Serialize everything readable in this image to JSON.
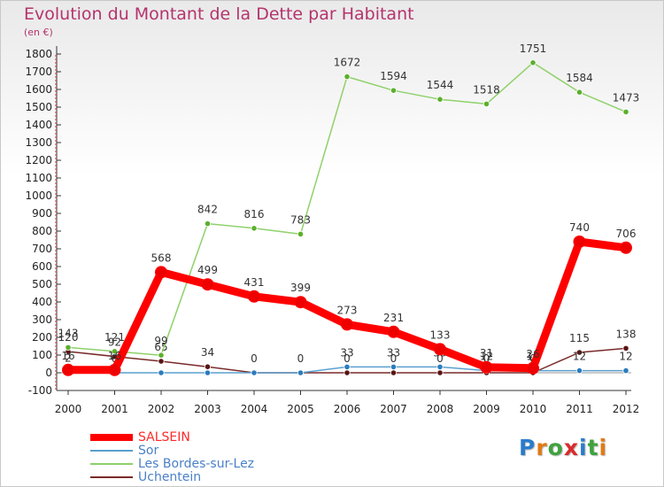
{
  "title": "Evolution du Montant de la Dette par Habitant",
  "subtitle": "(en €)",
  "brand": {
    "letters": [
      {
        "char": "P",
        "color": "#2a7ccc"
      },
      {
        "char": "r",
        "color": "#e07a16"
      },
      {
        "char": "o",
        "color": "#3fa23f"
      },
      {
        "char": "x",
        "color": "#d92b2b"
      },
      {
        "char": "i",
        "color": "#2a7ccc"
      },
      {
        "char": "t",
        "color": "#3fa23f"
      },
      {
        "char": "i",
        "color": "#e07a16"
      }
    ]
  },
  "chart_data": {
    "type": "line",
    "title": "Evolution du Montant de la Dette par Habitant",
    "ylabel": "(en €)",
    "xlabel": "",
    "x": [
      "2000",
      "2001",
      "2002",
      "2003",
      "2004",
      "2005",
      "2006",
      "2007",
      "2008",
      "2009",
      "2010",
      "2011",
      "2012"
    ],
    "ylim": [
      -100,
      1800
    ],
    "yticks": [
      -100,
      0,
      100,
      200,
      300,
      400,
      500,
      600,
      700,
      800,
      900,
      1000,
      1100,
      1200,
      1300,
      1400,
      1500,
      1600,
      1700,
      1800
    ],
    "grid": false,
    "legend_position": "bottom-left",
    "series": [
      {
        "name": "Uchentein",
        "color": "#7a2a2a",
        "markerColor": "#5a1414",
        "values": [
          120,
          92,
          65,
          34,
          0,
          0,
          0,
          0,
          0,
          0,
          0,
          115,
          138
        ],
        "labels": [
          "120",
          "92",
          "65",
          "34",
          "0",
          "0",
          "0",
          "0",
          "0",
          "0",
          "0",
          "115",
          "138"
        ]
      },
      {
        "name": "Sor",
        "color": "#5aa0cf",
        "markerColor": "#2a7cbc",
        "values": [
          2,
          0,
          0,
          0,
          0,
          0,
          33,
          33,
          33,
          12,
          12,
          12,
          12
        ],
        "labels": [
          "2",
          "0",
          "",
          "",
          "",
          "",
          "33",
          "33",
          "33",
          "12",
          "12",
          "12",
          "12"
        ]
      },
      {
        "name": "Les Bordes-sur-Lez",
        "color": "#8fd16a",
        "markerColor": "#5cb02c",
        "values": [
          143,
          121,
          99,
          842,
          816,
          783,
          1672,
          1594,
          1544,
          1518,
          1751,
          1584,
          1473
        ],
        "labels": [
          "143",
          "121",
          "99",
          "842",
          "816",
          "783",
          "1672",
          "1594",
          "1544",
          "1518",
          "1751",
          "1584",
          "1473"
        ]
      },
      {
        "name": "SALSEIN",
        "color": "#ff0000",
        "markerColor": "#ee0000",
        "values": [
          16,
          16,
          568,
          499,
          431,
          399,
          273,
          231,
          133,
          31,
          26,
          740,
          706
        ],
        "labels": [
          "16",
          "16",
          "568",
          "499",
          "431",
          "399",
          "273",
          "231",
          "133",
          "31",
          "26",
          "740",
          "706"
        ]
      }
    ],
    "legend": [
      {
        "name": "SALSEIN",
        "color": "#ff0000",
        "thickness": 8,
        "textColor": "#ff2a2a"
      },
      {
        "name": "Sor",
        "color": "#5aa0cf",
        "thickness": 2,
        "textColor": "#4a80c8"
      },
      {
        "name": "Les Bordes-sur-Lez",
        "color": "#8fd16a",
        "thickness": 2,
        "textColor": "#4a80c8"
      },
      {
        "name": "Uchentein",
        "color": "#7a2a2a",
        "thickness": 2,
        "textColor": "#4a80c8"
      }
    ]
  }
}
